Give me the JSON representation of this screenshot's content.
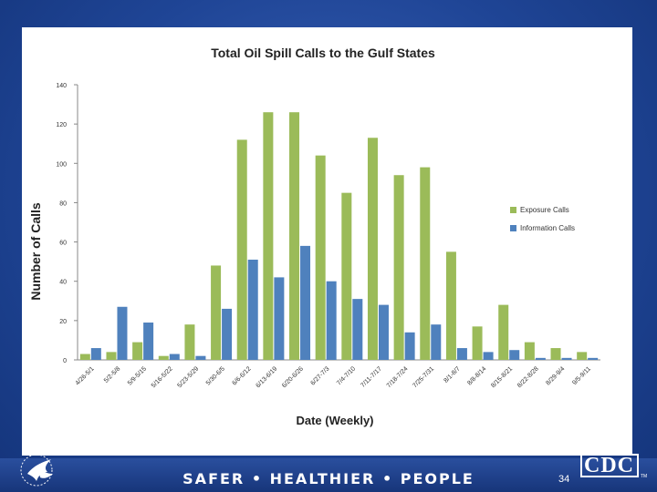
{
  "slide": {
    "footer_text": "SAFER • HEALTHIER • PEOPLE",
    "page_number": "34",
    "logo_text": "CDC"
  },
  "chart_data": {
    "type": "bar",
    "title": "Total Oil Spill Calls to the Gulf States",
    "xlabel": "Date (Weekly)",
    "ylabel": "Number of Calls",
    "ylim": [
      0,
      140
    ],
    "yticks": [
      0,
      20,
      40,
      60,
      80,
      100,
      120,
      140
    ],
    "grid": false,
    "legend_position": "right",
    "categories": [
      "4/26-5/1",
      "5/2-5/8",
      "5/9-5/15",
      "5/16-5/22",
      "5/23-5/29",
      "5/30-6/5",
      "6/6-6/12",
      "6/13-6/19",
      "6/20-6/26",
      "6/27-7/3",
      "7/4-7/10",
      "7/11-7/17",
      "7/18-7/24",
      "7/25-7/31",
      "8/1-8/7",
      "8/8-8/14",
      "8/15-8/21",
      "8/22-8/28",
      "8/29-9/4",
      "9/5-9/11"
    ],
    "series": [
      {
        "name": "Exposure Calls",
        "color": "#9bbb59",
        "values": [
          3,
          4,
          9,
          2,
          18,
          48,
          112,
          126,
          126,
          104,
          85,
          113,
          94,
          98,
          55,
          17,
          28,
          9,
          6,
          4
        ]
      },
      {
        "name": "Information Calls",
        "color": "#4f81bd",
        "values": [
          6,
          27,
          19,
          3,
          2,
          26,
          51,
          42,
          58,
          40,
          31,
          28,
          14,
          18,
          6,
          4,
          5,
          1,
          1,
          1
        ]
      }
    ]
  }
}
